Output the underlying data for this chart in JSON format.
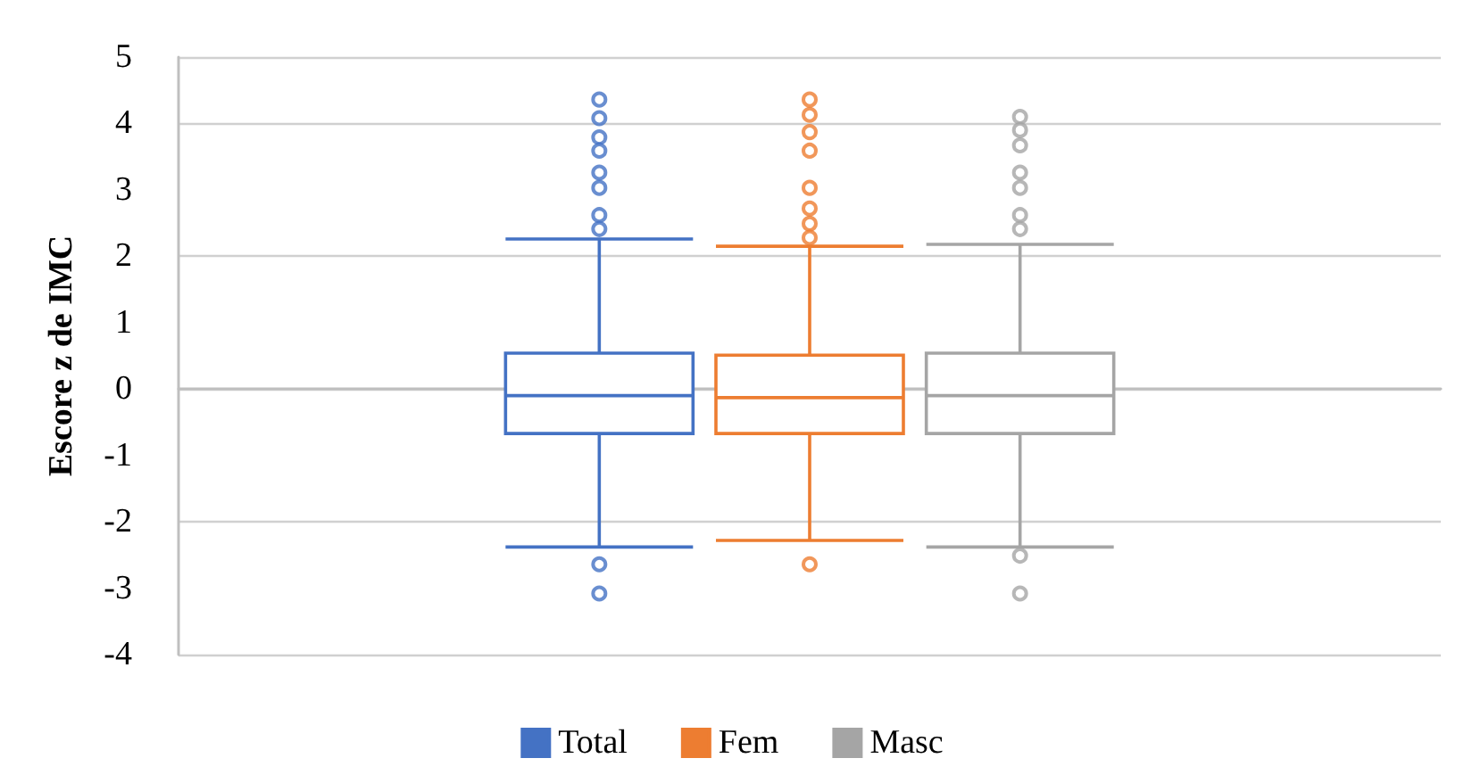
{
  "chart_data": {
    "type": "box",
    "ylabel": "Escore z de IMC",
    "categories": [
      null
    ],
    "ylim": [
      -4,
      5
    ],
    "yticks": [
      -4,
      -3,
      -2,
      -1,
      0,
      1,
      2,
      3,
      4,
      5
    ],
    "grid": "y",
    "legend": "bottom",
    "series": [
      {
        "name": "Total",
        "color": "#4472c4",
        "boxes": [
          {
            "low": -2.38,
            "q1": -0.67,
            "median": -0.1,
            "q3": 0.54,
            "high": 2.26,
            "outliers": [
              4.36,
              4.08,
              3.79,
              3.59,
              3.26,
              3.03,
              2.62,
              2.41,
              -2.64,
              -3.08
            ]
          }
        ]
      },
      {
        "name": "Fem",
        "color": "#ed7d31",
        "boxes": [
          {
            "low": -2.28,
            "q1": -0.67,
            "median": -0.13,
            "q3": 0.51,
            "high": 2.15,
            "outliers": [
              4.36,
              4.13,
              3.87,
              3.59,
              3.03,
              2.72,
              2.49,
              2.28,
              -2.64
            ]
          }
        ]
      },
      {
        "name": "Masc",
        "color": "#a5a5a5",
        "boxes": [
          {
            "low": -2.38,
            "q1": -0.67,
            "median": -0.1,
            "q3": 0.54,
            "high": 2.18,
            "outliers": [
              4.1,
              3.9,
              3.67,
              3.26,
              3.03,
              2.62,
              2.41,
              -2.51,
              -3.08
            ]
          }
        ]
      }
    ]
  }
}
